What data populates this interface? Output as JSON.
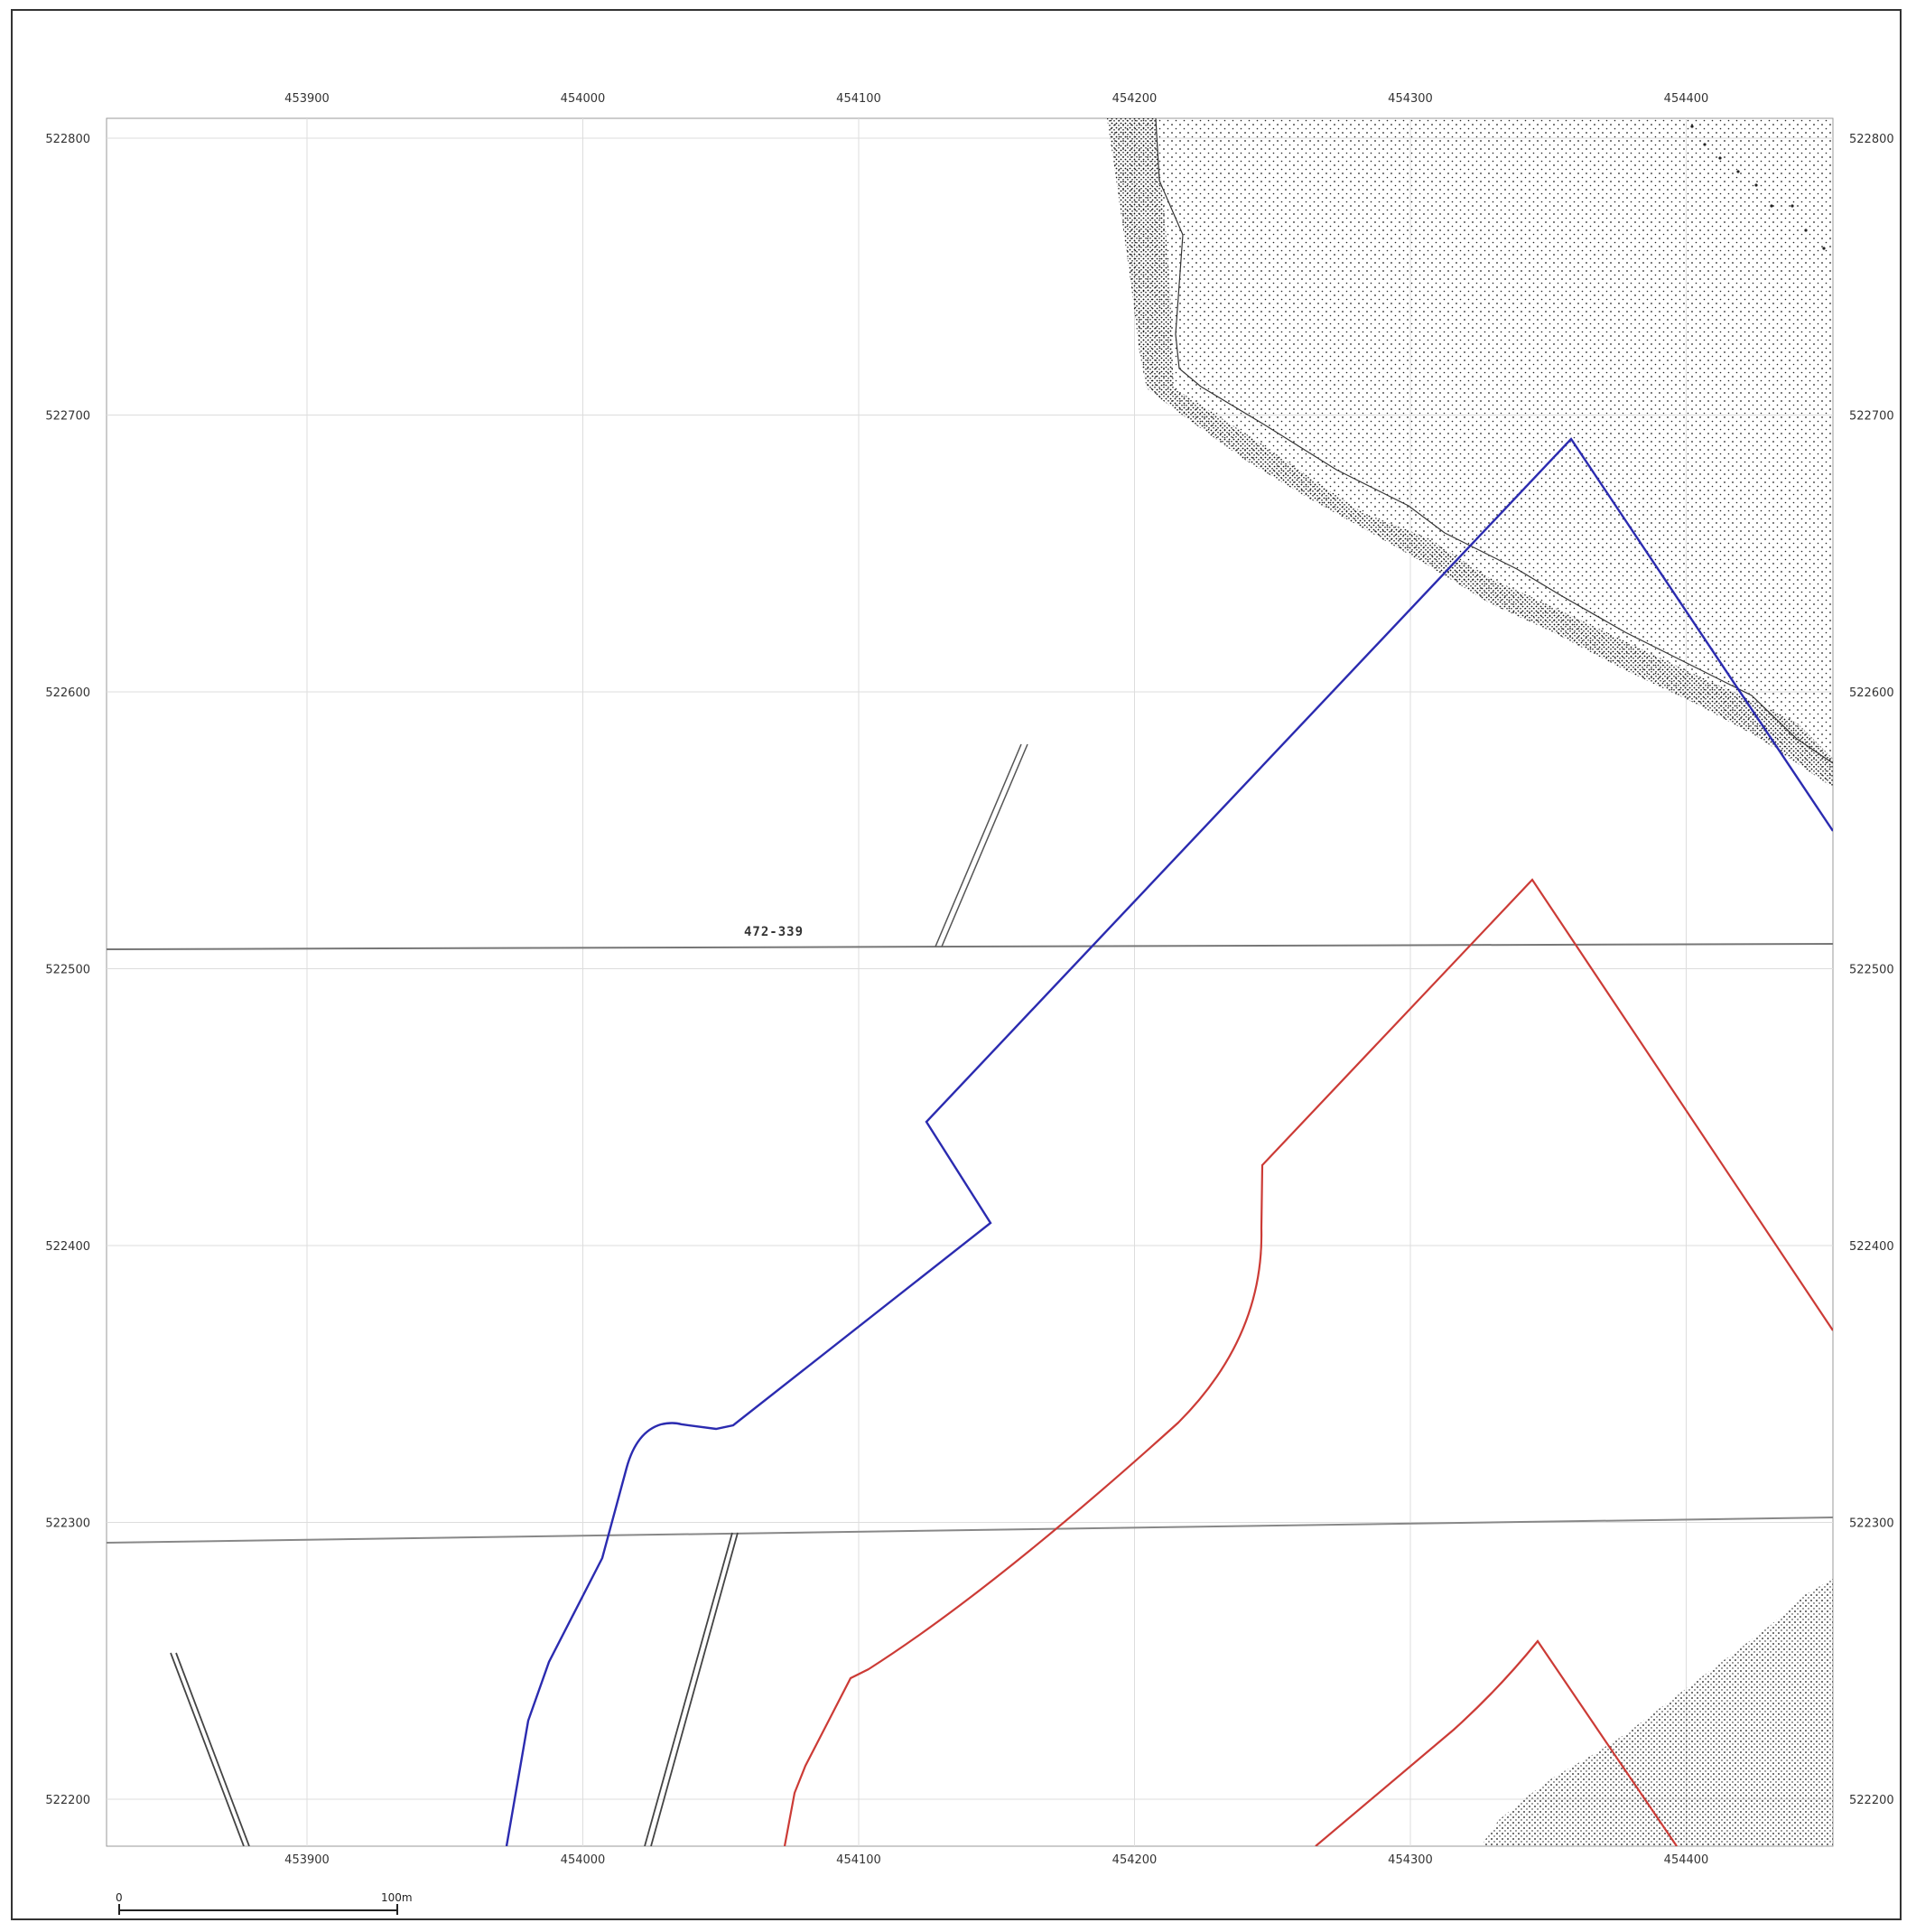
{
  "map": {
    "x_ticks": [
      "453900",
      "454000",
      "454100",
      "454200",
      "454300",
      "454400"
    ],
    "y_ticks": [
      "522800",
      "522700",
      "522600",
      "522500",
      "522400",
      "522300",
      "522200"
    ],
    "parcel_label": "472-339",
    "scale_bar": {
      "start_label": "0",
      "end_label": "100m"
    },
    "colors": {
      "blue_boundary": "#2b2bb0",
      "red_boundary": "#cc3b36",
      "grid": "#dddddd",
      "stipple": "#1a1a1a"
    }
  }
}
